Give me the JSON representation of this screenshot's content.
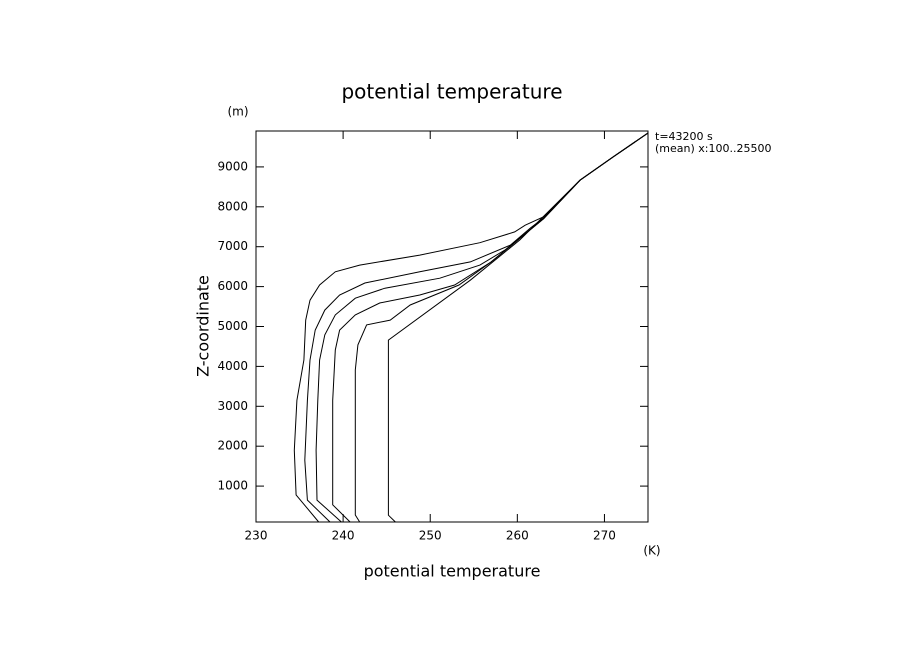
{
  "chart_data": {
    "type": "line",
    "title": "potential temperature",
    "x_label": "potential temperature",
    "y_label": "Z-coordinate",
    "x_unit": "(K)",
    "y_unit": "(m)",
    "annotations": [
      "t=43200 s",
      "(mean) x:100..25500"
    ],
    "xlim": [
      230,
      275
    ],
    "xticks": [
      230,
      240,
      250,
      260,
      270
    ],
    "ylim": [
      100,
      9900
    ],
    "yticks": [
      1000,
      2000,
      3000,
      4000,
      5000,
      6000,
      7000,
      8000,
      9000
    ],
    "series": [
      {
        "color": "#000000",
        "x": [
          237.2,
          234.6,
          234.4,
          234.7,
          235.5,
          235.7,
          236.2,
          237.3,
          239.1,
          241.9,
          248.8,
          255.7,
          259.7,
          260.9,
          263.0,
          267.2,
          271.0,
          275.0
        ],
        "values": [
          100,
          780,
          1900,
          3150,
          4160,
          5160,
          5660,
          6040,
          6370,
          6540,
          6790,
          7100,
          7370,
          7540,
          7750,
          8670,
          9250,
          9850
        ]
      },
      {
        "color": "#000000",
        "x": [
          238.5,
          235.9,
          235.6,
          235.9,
          236.2,
          236.8,
          237.9,
          239.6,
          242.5,
          248.8,
          254.6,
          259.2,
          261.5,
          263.0,
          267.2,
          271.0,
          275.0
        ],
        "values": [
          100,
          650,
          1650,
          3150,
          4160,
          4910,
          5410,
          5790,
          6090,
          6370,
          6620,
          7040,
          7470,
          7720,
          8670,
          9250,
          9850
        ]
      },
      {
        "color": "#000000",
        "x": [
          239.8,
          237.0,
          236.9,
          237.1,
          237.3,
          237.9,
          239.1,
          241.4,
          244.8,
          251.1,
          255.7,
          258.6,
          263.0,
          267.2,
          271.0,
          275.0
        ],
        "values": [
          100,
          650,
          1900,
          3150,
          4160,
          4790,
          5290,
          5710,
          5960,
          6210,
          6540,
          6920,
          7700,
          8670,
          9250,
          9850
        ]
      },
      {
        "color": "#000000",
        "x": [
          240.8,
          238.8,
          238.8,
          239.1,
          239.6,
          241.4,
          244.2,
          248.8,
          252.8,
          257.0,
          263.0,
          267.2,
          271.0,
          275.0
        ],
        "values": [
          100,
          530,
          3150,
          4410,
          4910,
          5290,
          5590,
          5790,
          6040,
          6620,
          7700,
          8670,
          9250,
          9850
        ]
      },
      {
        "color": "#000000",
        "x": [
          241.9,
          241.4,
          241.4,
          241.7,
          242.7,
          245.4,
          247.7,
          253.3,
          257.0,
          263.0,
          267.2,
          271.0,
          275.0
        ],
        "values": [
          100,
          275,
          3910,
          4540,
          5040,
          5160,
          5540,
          6040,
          6620,
          7700,
          8670,
          9250,
          9850
        ]
      },
      {
        "color": "#000000",
        "x": [
          246.0,
          245.2,
          245.2,
          254.6,
          260.3,
          267.2,
          271.0,
          275.0
        ],
        "values": [
          100,
          270,
          4660,
          6160,
          7170,
          8670,
          9250,
          9850
        ]
      }
    ]
  }
}
